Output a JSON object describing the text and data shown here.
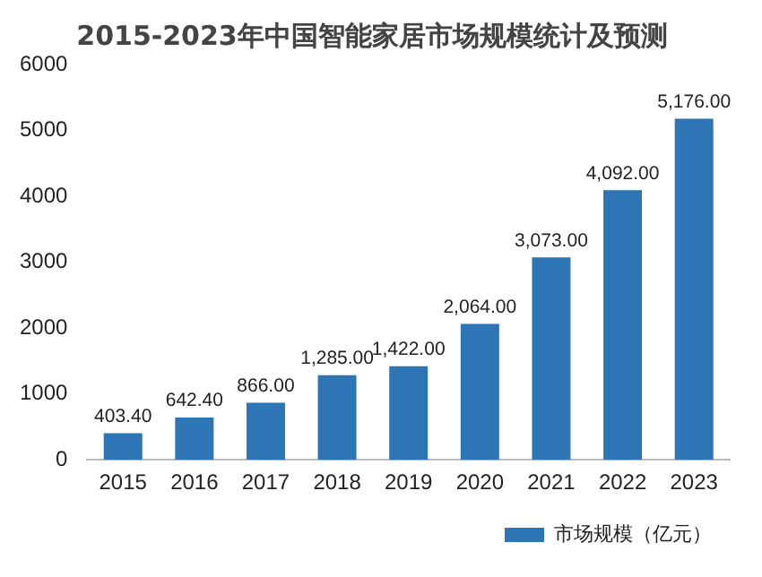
{
  "chart_data": {
    "type": "bar",
    "title": "2015-2023年中国智能家居市场规模统计及预测",
    "categories": [
      "2015",
      "2016",
      "2017",
      "2018",
      "2019",
      "2020",
      "2021",
      "2022",
      "2023"
    ],
    "series": [
      {
        "name": "市场规模（亿元）",
        "color": "#2e75b6",
        "values": [
          403.4,
          642.4,
          866,
          1285,
          1422,
          2064,
          3073,
          4092,
          5176
        ],
        "value_labels": [
          "403.40",
          "642.40",
          "866.00",
          "1,285.00",
          "1,422.00",
          "2,064.00",
          "3,073.00",
          "4,092.00",
          "5,176.00"
        ]
      }
    ],
    "ylim": [
      0,
      6000
    ],
    "yticks": [
      0,
      1000,
      2000,
      3000,
      4000,
      5000,
      6000
    ],
    "grid": false,
    "legend": "bottom"
  }
}
